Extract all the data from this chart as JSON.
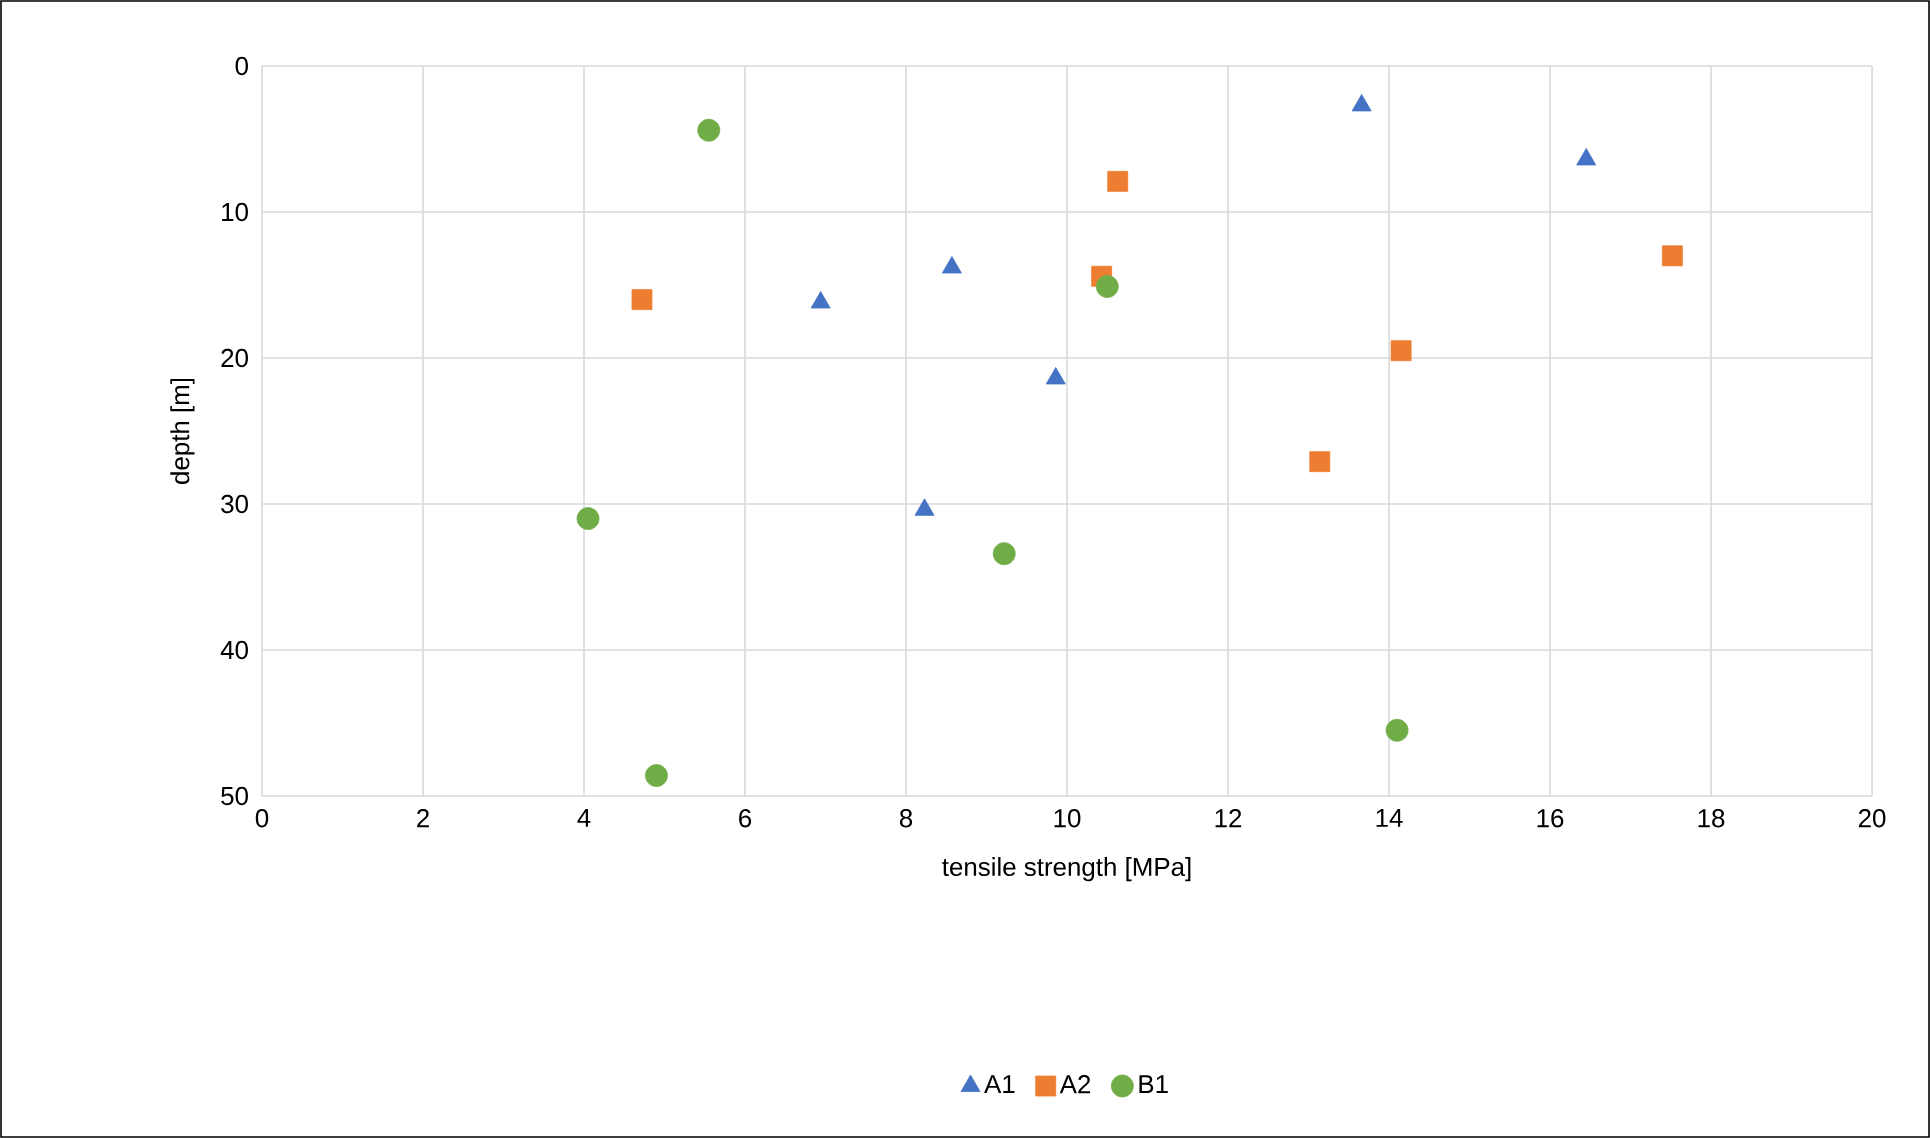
{
  "chart_data": {
    "type": "scatter",
    "xlabel": "tensile strength [MPa]",
    "ylabel": "depth [m]",
    "xlim": [
      0,
      20
    ],
    "ylim": [
      50,
      0
    ],
    "xticks": [
      0,
      2,
      4,
      6,
      8,
      10,
      12,
      14,
      16,
      18,
      20
    ],
    "yticks": [
      0,
      10,
      20,
      30,
      40,
      50
    ],
    "grid": true,
    "legend": "bottom",
    "series": [
      {
        "name": "A1",
        "color": "#4472c4",
        "marker": "triangle",
        "x": [
          13.66,
          16.45,
          6.94,
          8.57,
          9.86,
          8.23
        ],
        "values": [
          2.7,
          6.4,
          16.2,
          13.8,
          21.4,
          30.4
        ]
      },
      {
        "name": "A2",
        "color": "#ed7d31",
        "marker": "square",
        "x": [
          4.72,
          10.63,
          10.43,
          17.52,
          14.15,
          13.14
        ],
        "values": [
          16.0,
          7.9,
          14.4,
          13.0,
          19.5,
          27.1
        ]
      },
      {
        "name": "B1",
        "color": "#70ad47",
        "marker": "circle",
        "x": [
          5.55,
          10.5,
          4.05,
          9.22,
          4.9,
          14.1
        ],
        "values": [
          4.4,
          15.1,
          31.0,
          33.4,
          48.6,
          45.5
        ]
      }
    ]
  }
}
